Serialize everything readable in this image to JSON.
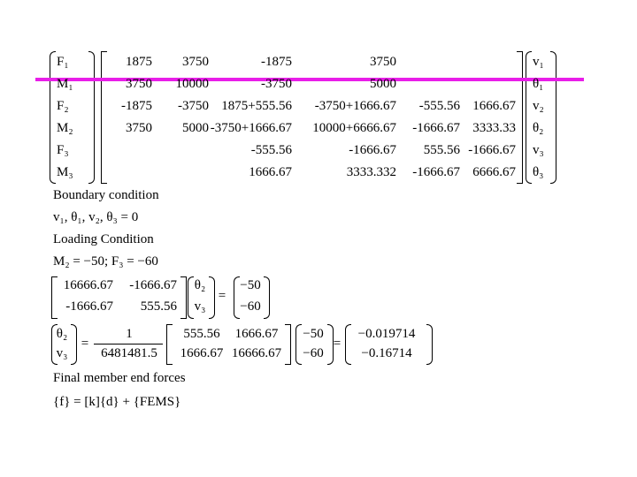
{
  "equation1": {
    "forces": [
      "F₁",
      "M₁",
      "F₂",
      "M₂",
      "F₃",
      "M₃"
    ],
    "matrix": [
      [
        "1875",
        "3750",
        "-1875",
        "3750",
        null,
        null
      ],
      [
        "3750",
        "10000",
        "-3750",
        "5000",
        null,
        null
      ],
      [
        "-1875",
        "-3750",
        "1875+555.56",
        "-3750+1666.67",
        "-555.56",
        "1666.67"
      ],
      [
        "3750",
        "5000",
        "-3750+1666.67",
        "10000+6666.67",
        "-1666.67",
        "3333.33"
      ],
      [
        null,
        null,
        "-555.56",
        "-1666.67",
        "555.56",
        "-1666.67"
      ],
      [
        null,
        null,
        "1666.67",
        "3333.332",
        "-1666.67",
        "6666.67"
      ]
    ],
    "displacements": [
      "v₁",
      "θ₁",
      "v₂",
      "θ₂",
      "v₃",
      "θ₃"
    ]
  },
  "boundary_heading": "Boundary condition",
  "boundary_text": "v₁, θ₁, v₂, θ₃ = 0",
  "loading_heading": "Loading Condition",
  "loading_text": "M₂ = −50;  F₃ = −60",
  "equals_sign": "=",
  "equation2": {
    "matrix": [
      [
        "16666.67",
        "-1666.67"
      ],
      [
        "-1666.67",
        "555.56"
      ]
    ],
    "unknowns": [
      "θ₂",
      "v₃"
    ],
    "loads": [
      "−50",
      "−60"
    ]
  },
  "solution": {
    "unknowns": [
      "θ₂",
      "v₃"
    ],
    "numerator": "1",
    "denominator": "6481481.5",
    "matrix": [
      [
        "555.56",
        "1666.67"
      ],
      [
        "1666.67",
        "16666.67"
      ]
    ],
    "loads": [
      "−50",
      "−60"
    ],
    "results": [
      "−0.019714",
      "−0.16714"
    ]
  },
  "final_heading": "Final member end forces",
  "final_formula": "{f} = [k]{d} + {FEMS}"
}
